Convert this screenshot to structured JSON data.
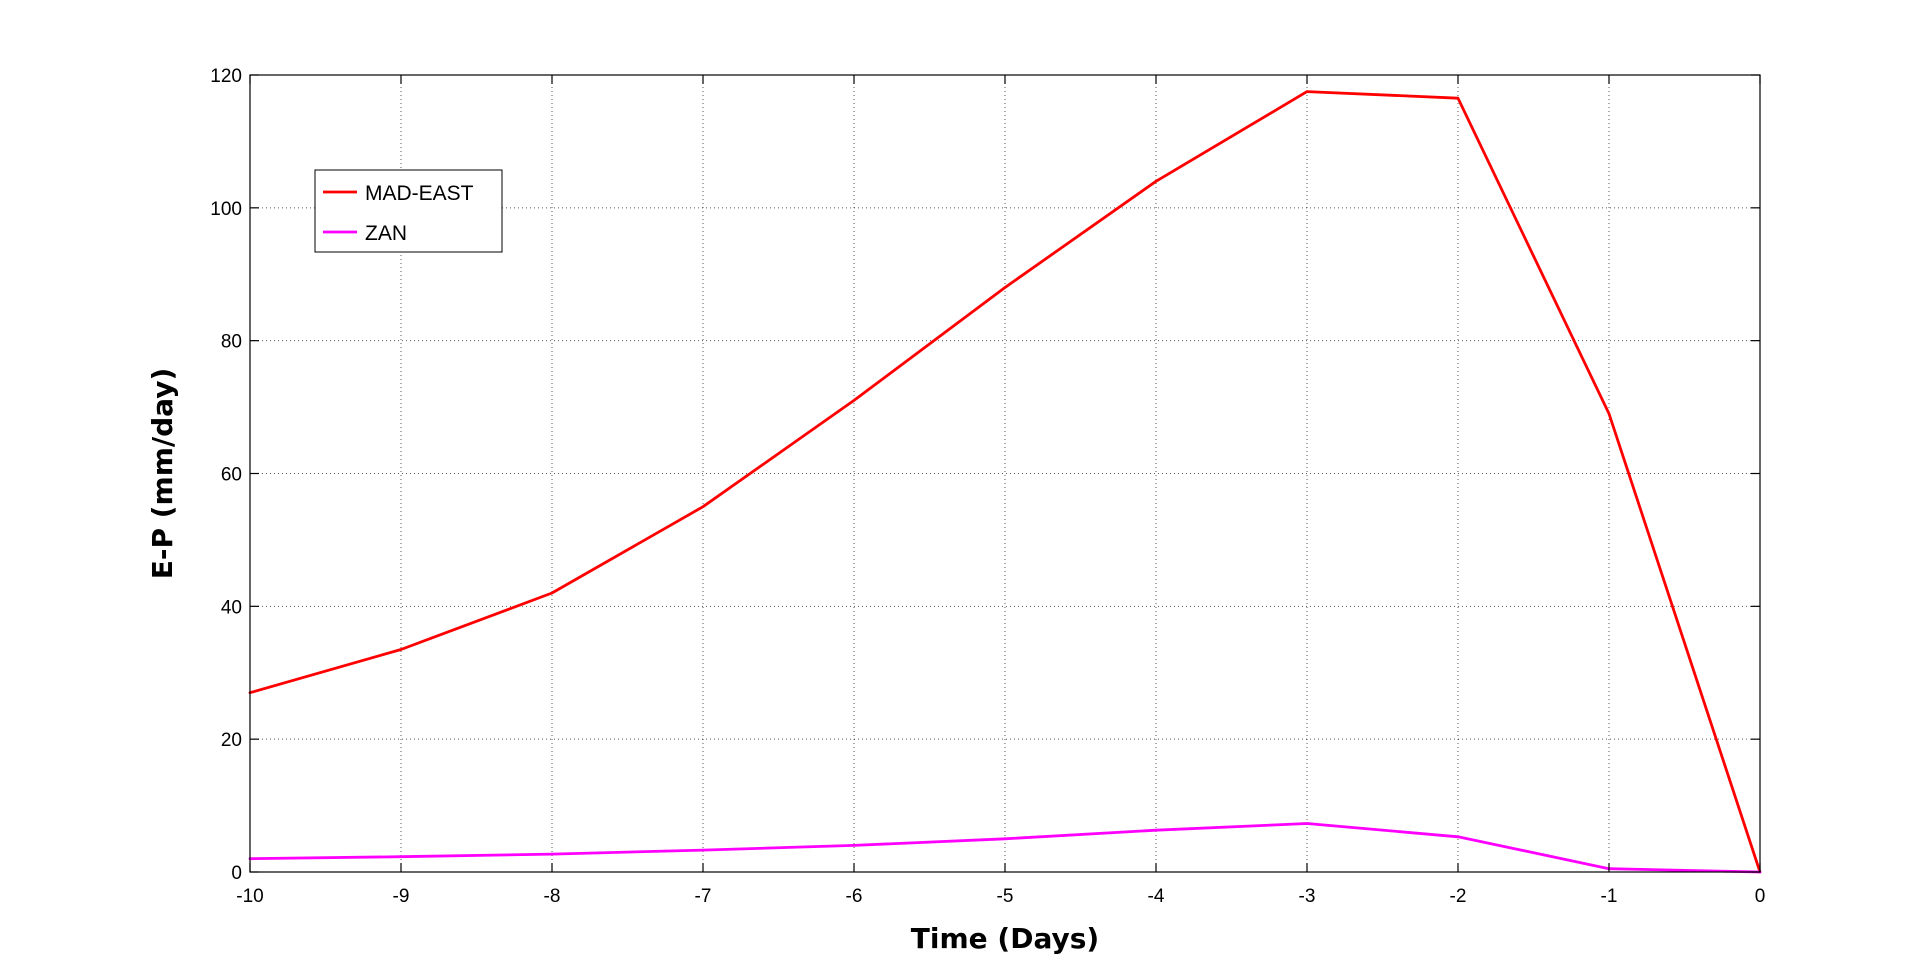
{
  "chart_data": {
    "type": "line",
    "title": "",
    "xlabel": "Time (Days)",
    "ylabel": "E-P (mm/day)",
    "xlim": [
      -10,
      0
    ],
    "ylim": [
      0,
      120
    ],
    "x_ticks": [
      -10,
      -9,
      -8,
      -7,
      -6,
      -5,
      -4,
      -3,
      -2,
      -1,
      0
    ],
    "y_ticks": [
      0,
      20,
      40,
      60,
      80,
      100,
      120
    ],
    "x_tick_labels": [
      "-10",
      "-9",
      "-8",
      "-7",
      "-6",
      "-5",
      "-4",
      "-3",
      "-2",
      "-1",
      "0"
    ],
    "y_tick_labels": [
      "0",
      "20",
      "40",
      "60",
      "80",
      "100",
      "120"
    ],
    "grid": true,
    "legend_position": "top-left",
    "x": [
      -10,
      -9,
      -8,
      -7,
      -6,
      -5,
      -4,
      -3,
      -2,
      -1,
      0
    ],
    "series": [
      {
        "name": "MAD-EAST",
        "color": "#ff0000",
        "values": [
          27,
          33.5,
          42,
          55,
          71,
          88,
          104,
          117.5,
          116.5,
          69,
          0
        ]
      },
      {
        "name": "ZAN",
        "color": "#ff00ff",
        "values": [
          2,
          2.3,
          2.7,
          3.3,
          4,
          5,
          6.3,
          7.3,
          5.3,
          0.5,
          0
        ]
      }
    ]
  }
}
